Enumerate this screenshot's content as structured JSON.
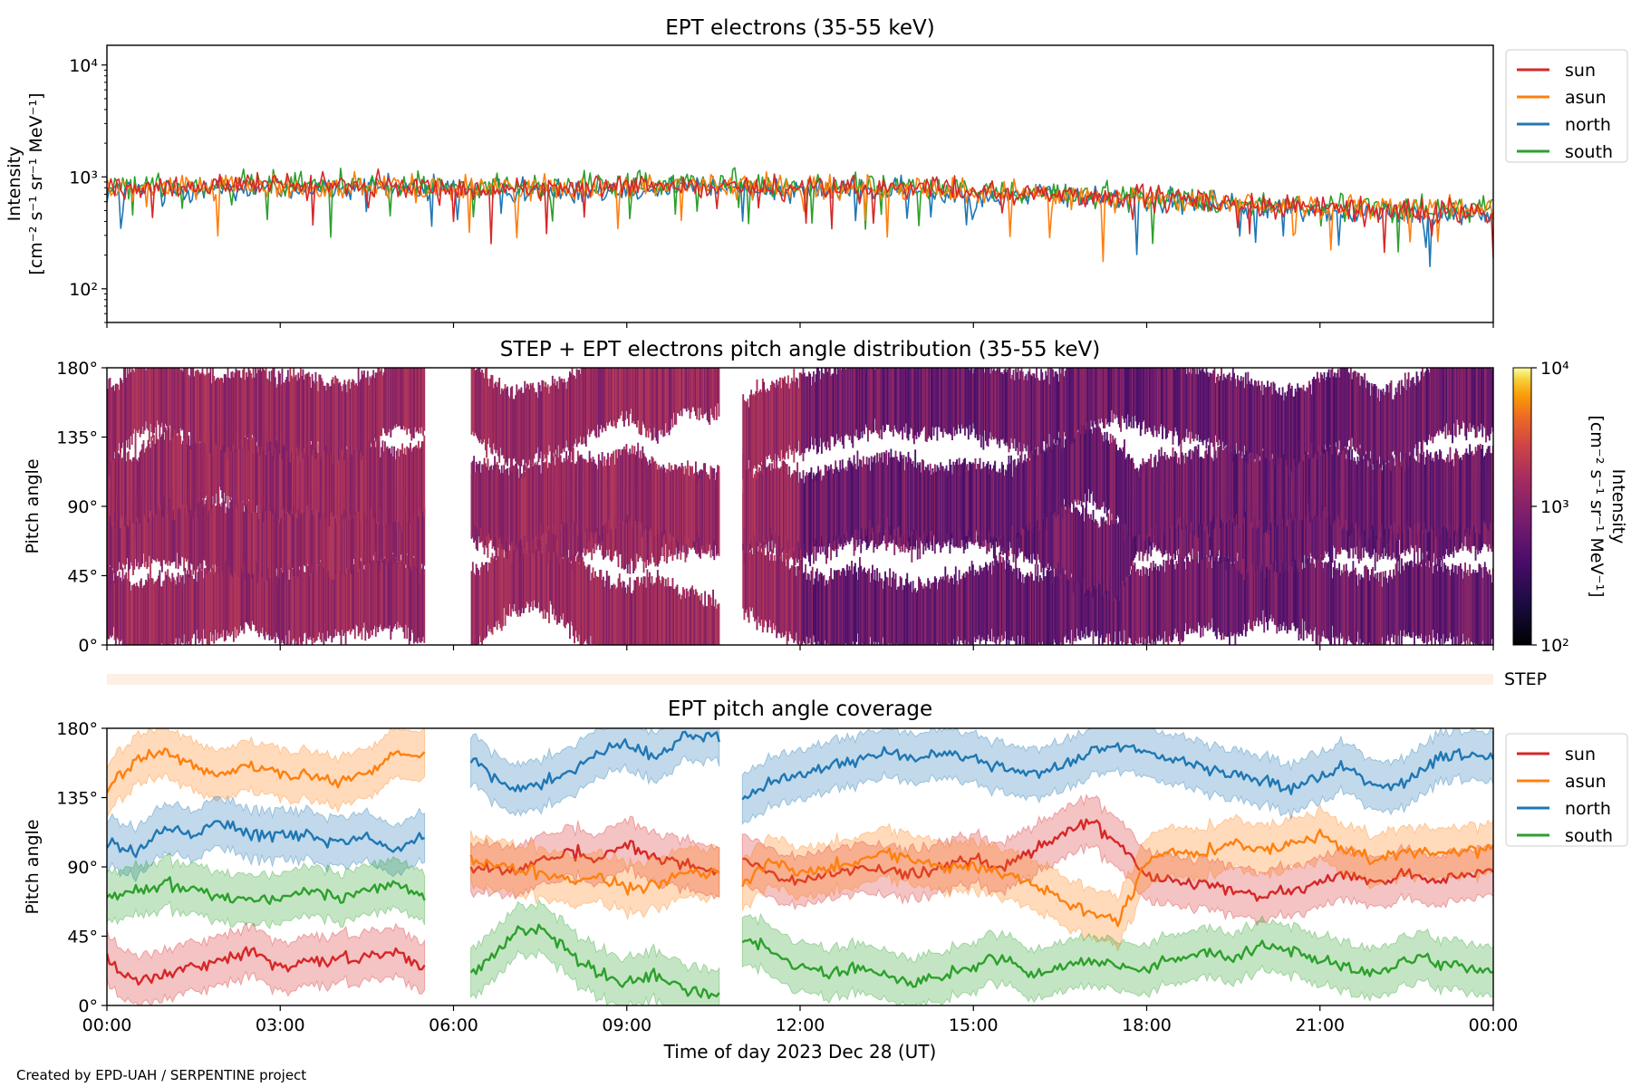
{
  "footer": "Created by EPD-UAH / SERPENTINE project",
  "colors": {
    "sun": "#d62728",
    "asun": "#ff7f0e",
    "north": "#1f77b4",
    "south": "#2ca02c"
  },
  "chart_data": [
    {
      "type": "line",
      "title": "EPT electrons (35-55 keV)",
      "ylabel_line1": "Intensity",
      "ylabel_line2": "[cm⁻² s⁻¹ sr⁻¹ MeV⁻¹]",
      "yscale": "log",
      "ylim": [
        50,
        15000
      ],
      "yticks": [
        {
          "value": 100,
          "label": "10²"
        },
        {
          "value": 1000,
          "label": "10³"
        },
        {
          "value": 10000,
          "label": "10⁴"
        }
      ],
      "xlim_hours": [
        0,
        24
      ],
      "legend_position": "outside-right",
      "series": [
        {
          "name": "sun",
          "color": "#d62728",
          "hours": [
            0,
            2,
            4,
            6,
            8,
            10,
            12,
            14,
            16,
            18,
            20,
            22,
            24
          ],
          "values": [
            800,
            850,
            820,
            800,
            780,
            850,
            800,
            780,
            700,
            650,
            550,
            500,
            480
          ]
        },
        {
          "name": "asun",
          "color": "#ff7f0e",
          "hours": [
            0,
            2,
            4,
            6,
            8,
            10,
            12,
            14,
            16,
            18,
            20,
            22,
            24
          ],
          "values": [
            780,
            830,
            800,
            790,
            800,
            860,
            820,
            760,
            700,
            640,
            560,
            520,
            500
          ]
        },
        {
          "name": "north",
          "color": "#1f77b4",
          "hours": [
            0,
            2,
            4,
            6,
            8,
            10,
            12,
            14,
            16,
            18,
            20,
            22,
            24
          ],
          "values": [
            750,
            800,
            790,
            780,
            760,
            820,
            780,
            740,
            680,
            620,
            530,
            480,
            450
          ]
        },
        {
          "name": "south",
          "color": "#2ca02c",
          "hours": [
            0,
            2,
            4,
            6,
            8,
            10,
            12,
            14,
            16,
            18,
            20,
            22,
            24
          ],
          "values": [
            820,
            880,
            860,
            830,
            820,
            900,
            840,
            800,
            720,
            660,
            580,
            540,
            520
          ]
        }
      ]
    },
    {
      "type": "heatmap",
      "title": "STEP + EPT electrons pitch angle distribution (35-55 keV)",
      "ylabel": "Pitch angle",
      "ylim": [
        0,
        180
      ],
      "yticks": [
        "0°",
        "45°",
        "90°",
        "135°",
        "180°"
      ],
      "data_gaps_hours": [
        [
          5.5,
          6.3
        ],
        [
          10.6,
          11.0
        ]
      ],
      "colorbar": {
        "scale": "log",
        "range": [
          100,
          10000
        ],
        "ticks": [
          "10²",
          "10³",
          "10⁴"
        ],
        "label_line1": "Intensity",
        "label_line2": "[cm⁻² s⁻¹ sr⁻¹ MeV⁻¹]"
      }
    },
    {
      "type": "line",
      "label": "STEP"
    },
    {
      "type": "line",
      "title": "EPT pitch angle coverage",
      "ylabel": "Pitch angle",
      "xlabel": "Time of day 2023 Dec 28 (UT)",
      "ylim": [
        0,
        180
      ],
      "yticks": [
        {
          "value": 0,
          "label": "0°"
        },
        {
          "value": 45,
          "label": "45°"
        },
        {
          "value": 90,
          "label": "90°"
        },
        {
          "value": 135,
          "label": "135°"
        },
        {
          "value": 180,
          "label": "180°"
        }
      ],
      "xticks": [
        {
          "hour": 0,
          "label": "00:00"
        },
        {
          "hour": 3,
          "label": "03:00"
        },
        {
          "hour": 6,
          "label": "06:00"
        },
        {
          "hour": 9,
          "label": "09:00"
        },
        {
          "hour": 12,
          "label": "12:00"
        },
        {
          "hour": 15,
          "label": "15:00"
        },
        {
          "hour": 18,
          "label": "18:00"
        },
        {
          "hour": 21,
          "label": "21:00"
        },
        {
          "hour": 24,
          "label": "00:00"
        }
      ],
      "data_gaps_hours": [
        [
          5.5,
          6.3
        ],
        [
          10.6,
          11.0
        ]
      ],
      "legend_position": "outside-right",
      "series": [
        {
          "name": "sun",
          "color": "#d62728",
          "hours": [
            0,
            0.5,
            1,
            1.5,
            2,
            2.5,
            3,
            3.5,
            4,
            4.5,
            5,
            5.5,
            6.3,
            7,
            7.5,
            8,
            8.5,
            9,
            9.5,
            10,
            10.6,
            11,
            11.5,
            12,
            12.5,
            13,
            13.5,
            14,
            14.5,
            15,
            15.5,
            16,
            16.5,
            17,
            17.5,
            18,
            18.5,
            19,
            19.5,
            20,
            20.5,
            21,
            21.5,
            22,
            22.5,
            23,
            23.5,
            24
          ],
          "values": [
            30,
            15,
            20,
            25,
            30,
            35,
            25,
            28,
            30,
            32,
            35,
            25,
            90,
            85,
            95,
            100,
            95,
            105,
            95,
            90,
            88,
            95,
            85,
            80,
            85,
            90,
            88,
            85,
            90,
            95,
            90,
            100,
            110,
            120,
            105,
            85,
            80,
            80,
            75,
            70,
            75,
            80,
            85,
            80,
            85,
            80,
            85,
            88
          ]
        },
        {
          "name": "asun",
          "color": "#ff7f0e",
          "hours": [
            0,
            0.5,
            1,
            1.5,
            2,
            2.5,
            3,
            3.5,
            4,
            4.5,
            5,
            5.5,
            6.3,
            7,
            7.5,
            8,
            8.5,
            9,
            9.5,
            10,
            10.6,
            11,
            11.5,
            12,
            12.5,
            13,
            13.5,
            14,
            14.5,
            15,
            15.5,
            16,
            16.5,
            17,
            17.5,
            18,
            18.5,
            19,
            19.5,
            20,
            20.5,
            21,
            21.5,
            22,
            22.5,
            23,
            23.5,
            24
          ],
          "values": [
            140,
            160,
            165,
            155,
            150,
            155,
            150,
            150,
            145,
            150,
            165,
            160,
            95,
            90,
            85,
            80,
            85,
            75,
            80,
            85,
            85,
            80,
            95,
            85,
            90,
            95,
            100,
            95,
            90,
            90,
            85,
            80,
            70,
            60,
            55,
            95,
            100,
            100,
            105,
            100,
            105,
            110,
            100,
            95,
            100,
            98,
            100,
            102
          ]
        },
        {
          "name": "north",
          "color": "#1f77b4",
          "hours": [
            0,
            0.5,
            1,
            1.5,
            2,
            2.5,
            3,
            3.5,
            4,
            4.5,
            5,
            5.5,
            6.3,
            7,
            7.5,
            8,
            8.5,
            9,
            9.5,
            10,
            10.6,
            11,
            11.5,
            12,
            12.5,
            13,
            13.5,
            14,
            14.5,
            15,
            15.5,
            16,
            16.5,
            17,
            17.5,
            18,
            18.5,
            19,
            19.5,
            20,
            20.5,
            21,
            21.5,
            22,
            22.5,
            23,
            23.5,
            24
          ],
          "values": [
            105,
            100,
            115,
            110,
            120,
            110,
            110,
            110,
            105,
            110,
            100,
            110,
            160,
            140,
            145,
            150,
            165,
            170,
            160,
            175,
            175,
            135,
            145,
            150,
            155,
            160,
            165,
            160,
            165,
            160,
            155,
            150,
            155,
            165,
            170,
            165,
            160,
            155,
            150,
            145,
            140,
            150,
            155,
            140,
            145,
            160,
            165,
            160
          ]
        },
        {
          "name": "south",
          "color": "#2ca02c",
          "hours": [
            0,
            0.5,
            1,
            1.5,
            2,
            2.5,
            3,
            3.5,
            4,
            4.5,
            5,
            5.5,
            6.3,
            7,
            7.5,
            8,
            8.5,
            9,
            9.5,
            10,
            10.6,
            11,
            11.5,
            12,
            12.5,
            13,
            13.5,
            14,
            14.5,
            15,
            15.5,
            16,
            16.5,
            17,
            17.5,
            18,
            18.5,
            19,
            19.5,
            20,
            20.5,
            21,
            21.5,
            22,
            22.5,
            23,
            23.5,
            24
          ],
          "values": [
            70,
            75,
            80,
            75,
            70,
            70,
            70,
            75,
            70,
            75,
            80,
            70,
            20,
            45,
            50,
            35,
            20,
            15,
            20,
            10,
            5,
            45,
            35,
            25,
            20,
            25,
            20,
            15,
            20,
            25,
            30,
            20,
            25,
            30,
            25,
            25,
            30,
            35,
            30,
            40,
            35,
            30,
            25,
            20,
            30,
            28,
            25,
            22
          ]
        }
      ]
    }
  ]
}
